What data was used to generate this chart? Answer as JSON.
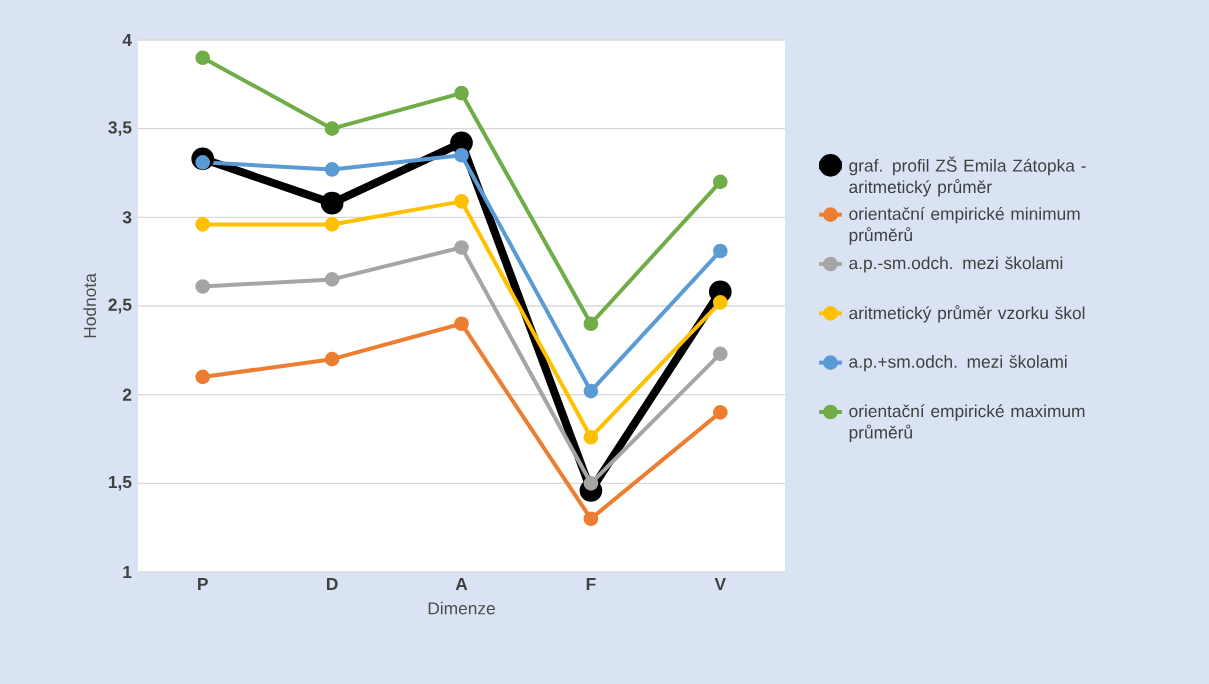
{
  "chart_data": {
    "type": "line",
    "xlabel": "Dimenze",
    "ylabel": "Hodnota",
    "categories": [
      "P",
      "D",
      "A",
      "F",
      "V"
    ],
    "series": [
      {
        "name": "graf. profil ZŠ Emila Zátopka - aritmetický průměr",
        "color": "#000000",
        "values": [
          3.33,
          3.08,
          3.42,
          1.46,
          2.58
        ]
      },
      {
        "name": "orientační empirické minimum průměrů",
        "color": "#ed7d31",
        "values": [
          2.1,
          2.2,
          2.4,
          1.3,
          1.9
        ]
      },
      {
        "name": "a.p.-sm.odch. mezi školami",
        "color": "#a5a5a5",
        "values": [
          2.61,
          2.65,
          2.83,
          1.5,
          2.23
        ]
      },
      {
        "name": "aritmetický průměr vzorku škol",
        "color": "#ffc000",
        "values": [
          2.96,
          2.96,
          3.09,
          1.76,
          2.52
        ]
      },
      {
        "name": "a.p.+sm.odch. mezi školami",
        "color": "#5b9bd5",
        "values": [
          3.31,
          3.27,
          3.35,
          2.02,
          2.81
        ]
      },
      {
        "name": "orientační empirické maximum průměrů",
        "color": "#70ad47",
        "values": [
          3.9,
          3.5,
          3.7,
          2.4,
          3.2
        ]
      }
    ],
    "ylim": [
      1,
      4
    ],
    "yticks": [
      1,
      {
        "value": 1.5,
        "label": "1,5"
      },
      2,
      {
        "value": 2.5,
        "label": "2,5"
      },
      3,
      {
        "value": 3.5,
        "label": "3,5"
      },
      4
    ],
    "grid": "y",
    "legend": "right",
    "marker": "circle",
    "line_style": "solid"
  }
}
